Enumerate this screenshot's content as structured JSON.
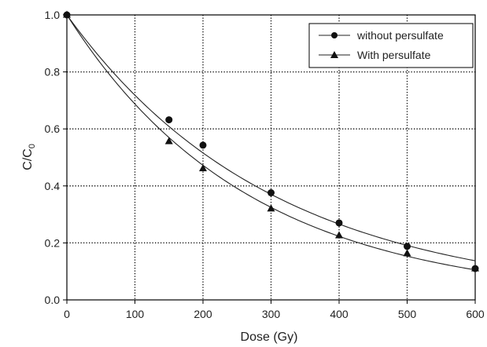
{
  "chart_data": {
    "type": "scatter",
    "title": "",
    "xlabel": "Dose (Gy)",
    "ylabel": {
      "main": "C/C",
      "sub": "0"
    },
    "xlim": [
      0,
      600
    ],
    "ylim": [
      0,
      1.0
    ],
    "xticks": [
      "0",
      "100",
      "200",
      "300",
      "400",
      "500",
      "600"
    ],
    "yticks": [
      "0.0",
      "0.2",
      "0.4",
      "0.6",
      "0.8",
      "1.0"
    ],
    "grid": true,
    "legend_position": "top-right",
    "series": [
      {
        "name": "without persulfate",
        "marker": "circle",
        "x": [
          0,
          150,
          200,
          300,
          400,
          500,
          600
        ],
        "y": [
          1.0,
          0.632,
          0.543,
          0.376,
          0.27,
          0.188,
          0.11
        ],
        "fit_rate": 0.00331
      },
      {
        "name": "With persulfate",
        "marker": "triangle",
        "x": [
          0,
          150,
          200,
          300,
          400,
          500,
          600
        ],
        "y": [
          1.0,
          0.556,
          0.461,
          0.32,
          0.226,
          0.163,
          0.11
        ],
        "fit_rate": 0.00375
      }
    ]
  }
}
